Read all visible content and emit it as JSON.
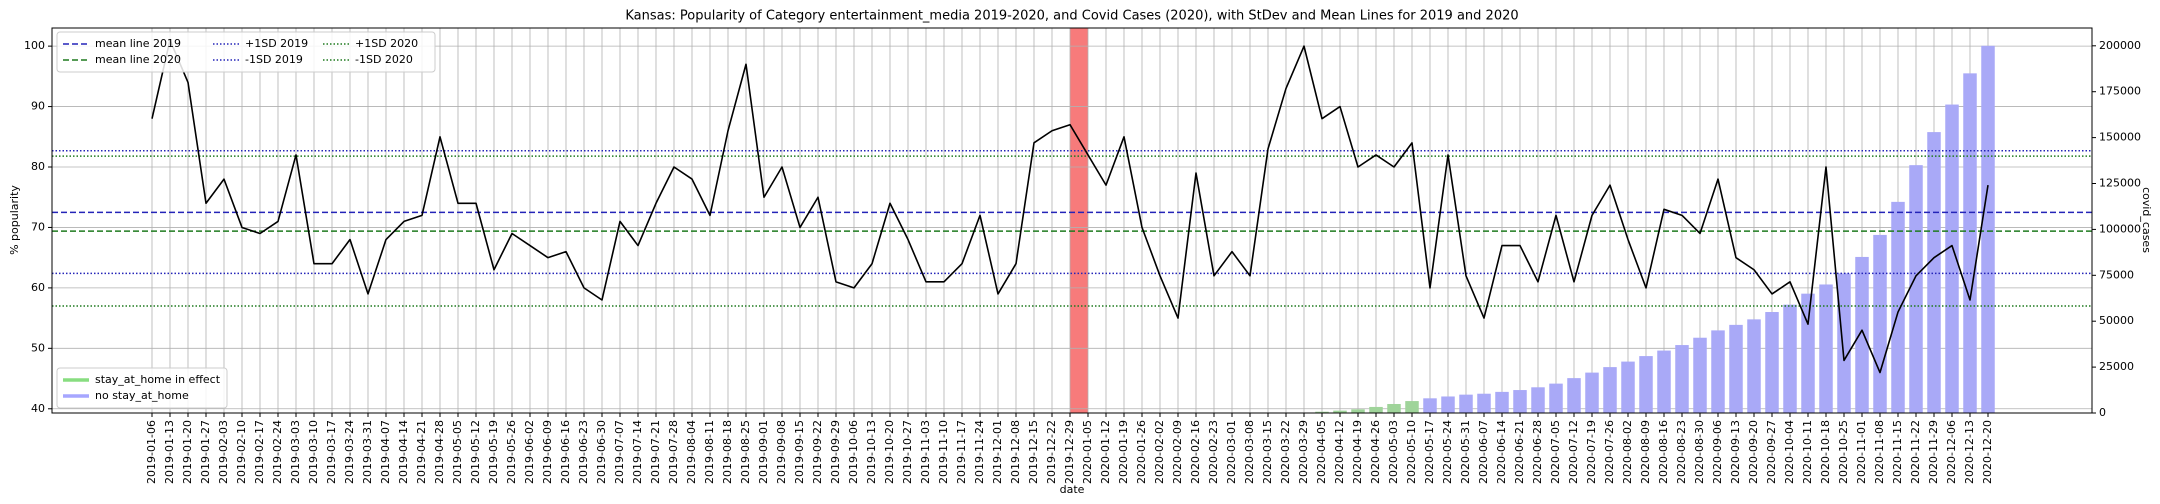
{
  "chart_data": {
    "type": "line",
    "title": "Kansas: Popularity of Category entertainment_media 2019-2020, and Covid Cases (2020), with StDev and Mean Lines for 2019 and 2020",
    "xlabel": "date",
    "ylabel": "% popularity",
    "y2label": "covid_cases",
    "categories": [
      "2019-01-06",
      "2019-01-13",
      "2019-01-20",
      "2019-01-27",
      "2019-02-03",
      "2019-02-10",
      "2019-02-17",
      "2019-02-24",
      "2019-03-03",
      "2019-03-10",
      "2019-03-17",
      "2019-03-24",
      "2019-03-31",
      "2019-04-07",
      "2019-04-14",
      "2019-04-21",
      "2019-04-28",
      "2019-05-05",
      "2019-05-12",
      "2019-05-19",
      "2019-05-26",
      "2019-06-02",
      "2019-06-09",
      "2019-06-16",
      "2019-06-23",
      "2019-06-30",
      "2019-07-07",
      "2019-07-14",
      "2019-07-21",
      "2019-07-28",
      "2019-08-04",
      "2019-08-11",
      "2019-08-18",
      "2019-08-25",
      "2019-09-01",
      "2019-09-08",
      "2019-09-15",
      "2019-09-22",
      "2019-09-29",
      "2019-10-06",
      "2019-10-13",
      "2019-10-20",
      "2019-10-27",
      "2019-11-03",
      "2019-11-10",
      "2019-11-17",
      "2019-11-24",
      "2019-12-01",
      "2019-12-08",
      "2019-12-15",
      "2019-12-22",
      "2019-12-29",
      "2020-01-05",
      "2020-01-12",
      "2020-01-19",
      "2020-01-26",
      "2020-02-02",
      "2020-02-09",
      "2020-02-16",
      "2020-02-23",
      "2020-03-01",
      "2020-03-08",
      "2020-03-15",
      "2020-03-22",
      "2020-03-29",
      "2020-04-05",
      "2020-04-12",
      "2020-04-19",
      "2020-04-26",
      "2020-05-03",
      "2020-05-10",
      "2020-05-17",
      "2020-05-24",
      "2020-05-31",
      "2020-06-07",
      "2020-06-14",
      "2020-06-21",
      "2020-06-28",
      "2020-07-05",
      "2020-07-12",
      "2020-07-19",
      "2020-07-26",
      "2020-08-02",
      "2020-08-09",
      "2020-08-16",
      "2020-08-23",
      "2020-08-30",
      "2020-09-06",
      "2020-09-13",
      "2020-09-20",
      "2020-09-27",
      "2020-10-04",
      "2020-10-11",
      "2020-10-18",
      "2020-10-25",
      "2020-11-01",
      "2020-11-08",
      "2020-11-15",
      "2020-11-22",
      "2020-11-29",
      "2020-12-06",
      "2020-12-13",
      "2020-12-20"
    ],
    "series": [
      {
        "type": "line",
        "color": "#000000",
        "values": [
          88,
          101,
          94,
          74,
          78,
          70,
          69,
          71,
          82,
          64,
          64,
          68,
          59,
          68,
          71,
          72,
          85,
          74,
          74,
          63,
          69,
          67,
          65,
          66,
          60,
          58,
          71,
          67,
          74,
          80,
          78,
          72,
          86,
          97,
          75,
          80,
          70,
          75,
          61,
          60,
          64,
          74,
          68,
          61,
          61,
          64,
          72,
          59,
          64,
          84,
          86,
          87,
          82,
          77,
          85,
          70,
          62,
          55,
          79,
          62,
          66,
          62,
          83,
          93,
          100,
          88,
          90,
          80,
          82,
          80,
          84,
          60,
          82,
          62,
          55,
          67,
          67,
          61,
          72,
          61,
          72,
          77,
          68,
          60,
          73,
          72,
          69,
          78,
          65,
          63,
          59,
          61,
          54,
          80,
          48,
          53,
          46,
          56,
          62,
          65,
          67,
          58,
          77
        ]
      },
      {
        "name": "stay_at_home in effect",
        "type": "bar",
        "axis": "y2",
        "color": "#9fd49a",
        "values": [
          null,
          null,
          null,
          null,
          null,
          null,
          null,
          null,
          null,
          null,
          null,
          null,
          null,
          null,
          null,
          null,
          null,
          null,
          null,
          null,
          null,
          null,
          null,
          null,
          null,
          null,
          null,
          null,
          null,
          null,
          null,
          null,
          null,
          null,
          null,
          null,
          null,
          null,
          null,
          null,
          null,
          null,
          null,
          null,
          null,
          null,
          null,
          null,
          null,
          null,
          null,
          null,
          null,
          null,
          null,
          null,
          null,
          null,
          null,
          null,
          null,
          null,
          null,
          null,
          null,
          700,
          1300,
          2000,
          3300,
          4900,
          6500,
          null,
          null,
          null,
          null,
          null,
          null,
          null,
          null,
          null,
          null,
          null,
          null,
          null,
          null,
          null,
          null,
          null,
          null,
          null,
          null,
          null,
          null,
          null,
          null,
          null,
          null,
          null,
          null,
          null,
          null,
          null,
          null
        ]
      },
      {
        "name": "no stay_at_home",
        "type": "bar",
        "axis": "y2",
        "color": "#a9a9f7",
        "values": [
          null,
          null,
          null,
          null,
          null,
          null,
          null,
          null,
          null,
          null,
          null,
          null,
          null,
          null,
          null,
          null,
          null,
          null,
          null,
          null,
          null,
          null,
          null,
          null,
          null,
          null,
          null,
          null,
          null,
          null,
          null,
          null,
          null,
          null,
          null,
          null,
          null,
          null,
          null,
          null,
          null,
          null,
          null,
          null,
          null,
          null,
          null,
          null,
          null,
          null,
          null,
          null,
          null,
          null,
          null,
          null,
          null,
          null,
          null,
          null,
          null,
          null,
          null,
          null,
          null,
          null,
          null,
          null,
          null,
          null,
          null,
          8000,
          9000,
          10000,
          10500,
          11500,
          12500,
          14000,
          16000,
          19000,
          22000,
          25000,
          28000,
          31000,
          34000,
          37000,
          41000,
          45000,
          48000,
          51000,
          55000,
          59000,
          65000,
          70000,
          76000,
          85000,
          97000,
          115000,
          135000,
          153000,
          168000,
          185000,
          200000
        ]
      }
    ],
    "reference_lines": [
      {
        "name": "mean line 2019",
        "value": 72.5,
        "color": "#2424b8",
        "style": "dashed"
      },
      {
        "name": "mean line 2020",
        "value": 69.4,
        "color": "#1f7a1f",
        "style": "dashed"
      },
      {
        "name": "+1SD 2019",
        "value": 82.7,
        "color": "#2424b8",
        "style": "dotted"
      },
      {
        "name": "-1SD 2019",
        "value": 62.4,
        "color": "#2424b8",
        "style": "dotted"
      },
      {
        "name": "+1SD 2020",
        "value": 81.8,
        "color": "#1f7a1f",
        "style": "dotted"
      },
      {
        "name": "-1SD 2020",
        "value": 57.0,
        "color": "#1f7a1f",
        "style": "dotted"
      }
    ],
    "highlight_span": {
      "from": "2019-12-29",
      "to": "2020-01-05",
      "color": "#f77b7b"
    },
    "ylim": [
      39.3,
      103
    ],
    "yticks": [
      40,
      50,
      60,
      70,
      80,
      90,
      100
    ],
    "y2lim": [
      0,
      209700
    ],
    "y2ticks": [
      0,
      25000,
      50000,
      75000,
      100000,
      125000,
      150000,
      175000,
      200000
    ],
    "grid": true,
    "legend": "upper left",
    "bar_legend": "lower left"
  }
}
